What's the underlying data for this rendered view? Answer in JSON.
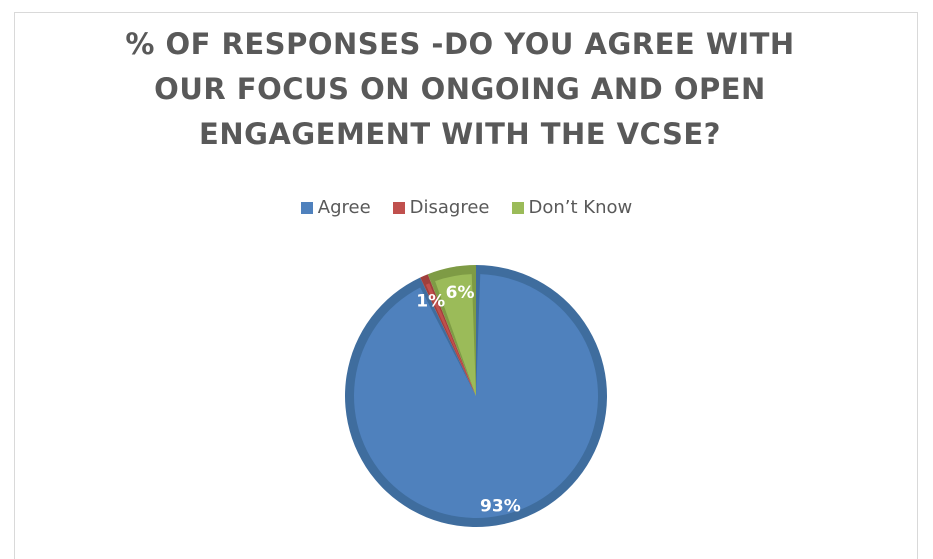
{
  "chart_data": {
    "type": "pie",
    "title": "% OF RESPONSES  -DO YOU AGREE WITH\nOUR FOCUS ON ONGOING AND OPEN\nENGAGEMENT WITH THE VCSE?",
    "categories": [
      "Agree",
      "Disagree",
      "Don’t Know"
    ],
    "values": [
      93,
      1,
      6
    ],
    "data_labels": [
      "93%",
      "1%",
      "6%"
    ],
    "colors": [
      "#4f81bd",
      "#c0504d",
      "#9bbb59"
    ],
    "legend_position": "top",
    "start_angle": "12 o'clock, clockwise for Agree"
  }
}
